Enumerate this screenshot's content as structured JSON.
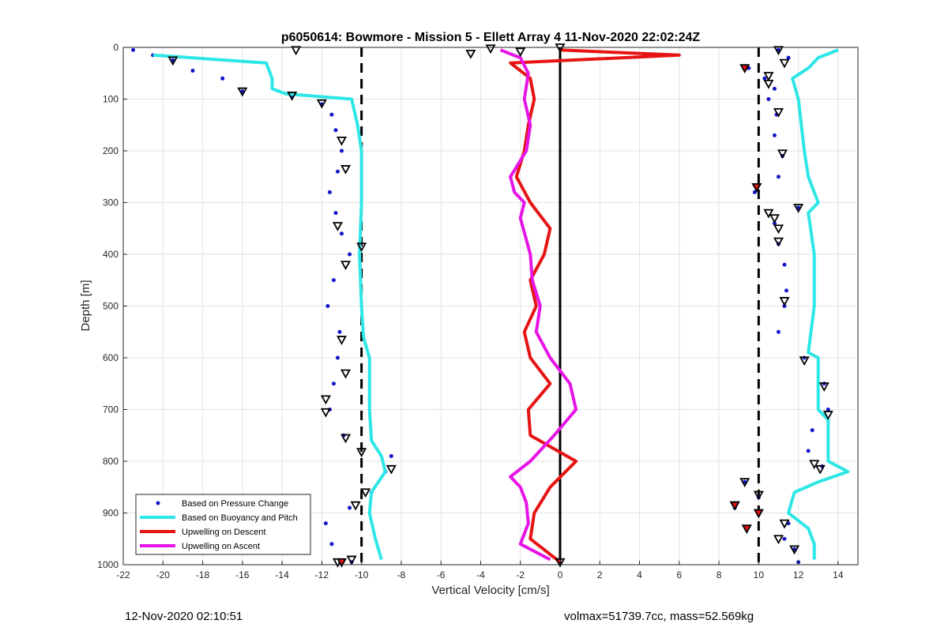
{
  "chart_data": {
    "type": "scatter",
    "title": "p6050614: Bowmore - Mission 5 - Ellett Array 4 11-Nov-2020 22:02:24Z",
    "xlabel": "Vertical Velocity [cm/s]",
    "ylabel": "Depth [m]",
    "xlim": [
      -22,
      15
    ],
    "ylim": [
      0,
      1000
    ],
    "y_reversed": true,
    "grid": true,
    "legend_position": "bottom-left",
    "x_ticks": [
      -22,
      -20,
      -18,
      -16,
      -14,
      -12,
      -10,
      -8,
      -6,
      -4,
      -2,
      0,
      2,
      4,
      6,
      8,
      10,
      12,
      14
    ],
    "y_ticks": [
      0,
      100,
      200,
      300,
      400,
      500,
      600,
      700,
      800,
      900,
      1000
    ],
    "reference_lines": [
      {
        "x": -10,
        "style": "dashed",
        "color": "#000000"
      },
      {
        "x": 0,
        "style": "solid",
        "color": "#000000"
      },
      {
        "x": 10,
        "style": "dashed",
        "color": "#000000"
      }
    ],
    "series": [
      {
        "name": "Based on Pressure Change",
        "style": "points",
        "color": "#1414c8",
        "descent": {
          "depth": [
            5,
            15,
            25,
            45,
            60,
            85,
            95,
            110,
            130,
            160,
            200,
            240,
            280,
            320,
            360,
            400,
            450,
            500,
            550,
            600,
            650,
            700,
            750,
            790,
            820,
            860,
            890,
            920,
            960,
            995
          ],
          "velocity": [
            -21.5,
            -20.5,
            -19.5,
            -18.5,
            -17.0,
            -16.0,
            -13.5,
            -12.0,
            -11.5,
            -11.3,
            -11.0,
            -11.2,
            -11.6,
            -11.3,
            -11.0,
            -10.6,
            -11.4,
            -11.7,
            -11.1,
            -11.2,
            -11.4,
            -11.6,
            -10.9,
            -8.5,
            -8.8,
            -9.5,
            -10.6,
            -11.8,
            -11.5,
            -10.5
          ]
        },
        "ascent": {
          "depth": [
            5,
            20,
            40,
            60,
            80,
            100,
            130,
            170,
            210,
            250,
            280,
            310,
            340,
            380,
            420,
            470,
            500,
            550,
            600,
            650,
            700,
            740,
            780,
            810,
            840,
            870,
            890,
            920,
            950,
            970,
            995
          ],
          "velocity": [
            11.0,
            11.5,
            9.5,
            10.3,
            10.8,
            10.5,
            10.9,
            10.8,
            11.2,
            11.0,
            9.8,
            12.0,
            10.8,
            11.0,
            11.3,
            11.4,
            11.3,
            11.0,
            12.3,
            13.3,
            13.5,
            12.7,
            12.5,
            13.2,
            9.3,
            10.0,
            8.8,
            11.5,
            11.3,
            11.8,
            12.0
          ]
        }
      },
      {
        "name": "Based on Buoyancy and Pitch",
        "style": "line",
        "color": "#2ee6e6",
        "descent": {
          "depth": [
            15,
            30,
            60,
            80,
            90,
            100,
            150,
            200,
            300,
            400,
            500,
            560,
            600,
            700,
            760,
            790,
            820,
            860,
            900,
            950,
            990
          ],
          "velocity": [
            -20.5,
            -14.8,
            -14.5,
            -14.5,
            -13.8,
            -10.5,
            -10.2,
            -10.0,
            -10.0,
            -10.1,
            -10.0,
            -9.9,
            -9.6,
            -9.6,
            -9.5,
            -9.0,
            -8.8,
            -9.5,
            -9.6,
            -9.3,
            -9.0
          ]
        },
        "ascent": {
          "depth": [
            5,
            20,
            40,
            60,
            100,
            200,
            250,
            300,
            320,
            400,
            500,
            590,
            600,
            700,
            720,
            800,
            820,
            840,
            860,
            900,
            930,
            960,
            990
          ],
          "velocity": [
            14.0,
            13.0,
            12.5,
            11.7,
            12.0,
            12.3,
            12.5,
            13.0,
            12.5,
            12.8,
            12.8,
            12.5,
            13.0,
            13.0,
            13.5,
            13.5,
            14.5,
            13.0,
            11.8,
            11.5,
            12.5,
            12.8,
            12.8
          ]
        }
      },
      {
        "name": "Upwelling on Descent",
        "style": "line",
        "color": "#e61414",
        "depth": [
          5,
          15,
          30,
          60,
          100,
          150,
          200,
          250,
          300,
          350,
          400,
          450,
          500,
          550,
          600,
          650,
          700,
          750,
          800,
          850,
          900,
          950,
          995
        ],
        "velocity": [
          0.0,
          6.0,
          -2.5,
          -1.5,
          -1.3,
          -1.6,
          -1.8,
          -2.2,
          -1.5,
          -0.5,
          -0.8,
          -1.5,
          -1.2,
          -1.8,
          -1.5,
          -0.5,
          -1.6,
          -1.5,
          0.8,
          -0.5,
          -1.3,
          -1.5,
          0.0
        ]
      },
      {
        "name": "Upwelling on Ascent",
        "style": "line",
        "color": "#e614e6",
        "depth": [
          5,
          20,
          50,
          100,
          150,
          200,
          250,
          280,
          300,
          330,
          400,
          450,
          500,
          550,
          600,
          650,
          700,
          750,
          800,
          830,
          850,
          880,
          920,
          960,
          990
        ],
        "velocity": [
          -3.0,
          -2.0,
          -1.6,
          -1.8,
          -1.5,
          -1.7,
          -2.5,
          -2.3,
          -1.8,
          -2.0,
          -1.5,
          -1.4,
          -1.0,
          -1.2,
          -0.5,
          0.5,
          0.8,
          -0.3,
          -1.5,
          -2.5,
          -2.0,
          -1.7,
          -1.6,
          -2.0,
          -0.5
        ]
      },
      {
        "name": "markers-open-triangles",
        "style": "triangles",
        "color": "#000000",
        "points": [
          {
            "x": -13.3,
            "y": 5
          },
          {
            "x": -19.5,
            "y": 25
          },
          {
            "x": -16.0,
            "y": 85
          },
          {
            "x": -13.5,
            "y": 93
          },
          {
            "x": -12.0,
            "y": 108
          },
          {
            "x": -11.0,
            "y": 180
          },
          {
            "x": -10.8,
            "y": 235
          },
          {
            "x": -11.2,
            "y": 345
          },
          {
            "x": -10.0,
            "y": 385
          },
          {
            "x": -10.8,
            "y": 420
          },
          {
            "x": -11.0,
            "y": 565
          },
          {
            "x": -10.8,
            "y": 630
          },
          {
            "x": -11.8,
            "y": 680
          },
          {
            "x": -11.8,
            "y": 705
          },
          {
            "x": -10.8,
            "y": 755
          },
          {
            "x": -10.0,
            "y": 782
          },
          {
            "x": -8.5,
            "y": 815
          },
          {
            "x": -9.8,
            "y": 860
          },
          {
            "x": -10.3,
            "y": 885
          },
          {
            "x": -10.5,
            "y": 990
          },
          {
            "x": -4.5,
            "y": 12
          },
          {
            "x": -3.5,
            "y": 2
          },
          {
            "x": -2.0,
            "y": 8
          },
          {
            "x": 0.0,
            "y": 0
          },
          {
            "x": 11.0,
            "y": 5
          },
          {
            "x": 11.3,
            "y": 30
          },
          {
            "x": 10.5,
            "y": 70
          },
          {
            "x": 10.5,
            "y": 55
          },
          {
            "x": 11.0,
            "y": 125
          },
          {
            "x": 11.2,
            "y": 205
          },
          {
            "x": 12.0,
            "y": 310
          },
          {
            "x": 10.8,
            "y": 330
          },
          {
            "x": 10.5,
            "y": 320
          },
          {
            "x": 11.0,
            "y": 350
          },
          {
            "x": 11.0,
            "y": 375
          },
          {
            "x": 11.3,
            "y": 490
          },
          {
            "x": 12.3,
            "y": 605
          },
          {
            "x": 13.3,
            "y": 655
          },
          {
            "x": 13.5,
            "y": 710
          },
          {
            "x": 12.8,
            "y": 805
          },
          {
            "x": 13.1,
            "y": 815
          },
          {
            "x": 9.3,
            "y": 840
          },
          {
            "x": 10.0,
            "y": 865
          },
          {
            "x": 8.8,
            "y": 885
          },
          {
            "x": 11.3,
            "y": 920
          },
          {
            "x": 11.0,
            "y": 950
          },
          {
            "x": 11.8,
            "y": 970
          },
          {
            "x": -11.2,
            "y": 995
          },
          {
            "x": 0.0,
            "y": 995
          }
        ]
      },
      {
        "name": "markers-filled-triangles",
        "style": "filled-triangles",
        "color": "#e61414",
        "points": [
          {
            "x": 9.3,
            "y": 40
          },
          {
            "x": 9.9,
            "y": 270
          },
          {
            "x": 8.8,
            "y": 885
          },
          {
            "x": 9.4,
            "y": 930
          },
          {
            "x": 10.0,
            "y": 900
          },
          {
            "x": -11.0,
            "y": 995
          }
        ]
      }
    ]
  },
  "footer": {
    "left": "12-Nov-2020 02:10:51",
    "right": "volmax=51739.7cc, mass=52.569kg"
  },
  "legend": {
    "items": [
      {
        "label": "Based on Pressure Change",
        "color": "#1414c8",
        "kind": "point"
      },
      {
        "label": "Based on Buoyancy and Pitch",
        "color": "#2ee6e6",
        "kind": "line"
      },
      {
        "label": "Upwelling on Descent",
        "color": "#e61414",
        "kind": "line"
      },
      {
        "label": "Upwelling on Ascent",
        "color": "#e614e6",
        "kind": "line"
      }
    ]
  }
}
